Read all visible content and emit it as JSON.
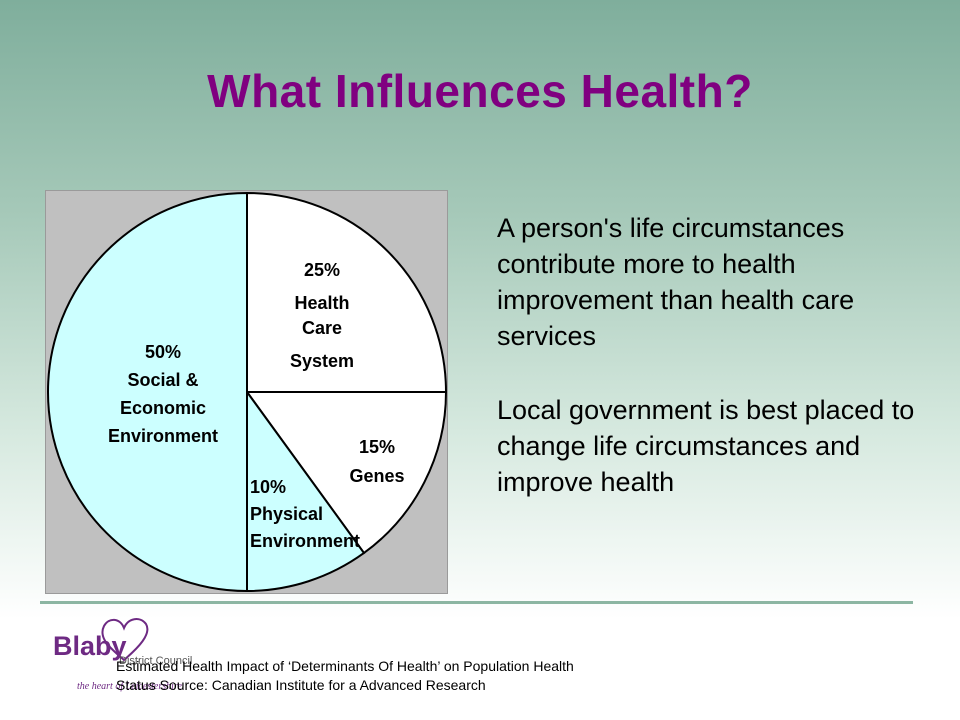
{
  "slide": {
    "title": "What Influences Health?",
    "paragraphs": [
      "A person's life circumstances contribute more to health improvement than health care services",
      "Local government is best placed to change life circumstances and improve health"
    ],
    "caption_line1": "Estimated Health Impact of ‘Determinants Of Health’ on Population Health",
    "caption_line2": "Status Source: Canadian Institute for a Advanced Research"
  },
  "logo": {
    "name": "Blaby",
    "sub": "District Council",
    "tagline": "the heart of Leicestershire",
    "color": "#6e2a83"
  },
  "chart_data": {
    "type": "pie",
    "title": "",
    "start_angle": "12 o'clock, clockwise",
    "slices": [
      {
        "percent_label": "25%",
        "label_lines": [
          "Health",
          "Care",
          "System"
        ],
        "value": 25,
        "color": "#ffffff"
      },
      {
        "percent_label": "15%",
        "label_lines": [
          "Genes"
        ],
        "value": 15,
        "color": "#ffffff"
      },
      {
        "percent_label": "10%",
        "label_lines": [
          "Physical",
          "Environment"
        ],
        "value": 10,
        "color": "#ccffff"
      },
      {
        "percent_label": "50%",
        "label_lines": [
          "Social &",
          "Economic",
          "Environment"
        ],
        "value": 50,
        "color": "#ccffff"
      }
    ],
    "background_color": "#c0c0c0",
    "legend": "none"
  }
}
